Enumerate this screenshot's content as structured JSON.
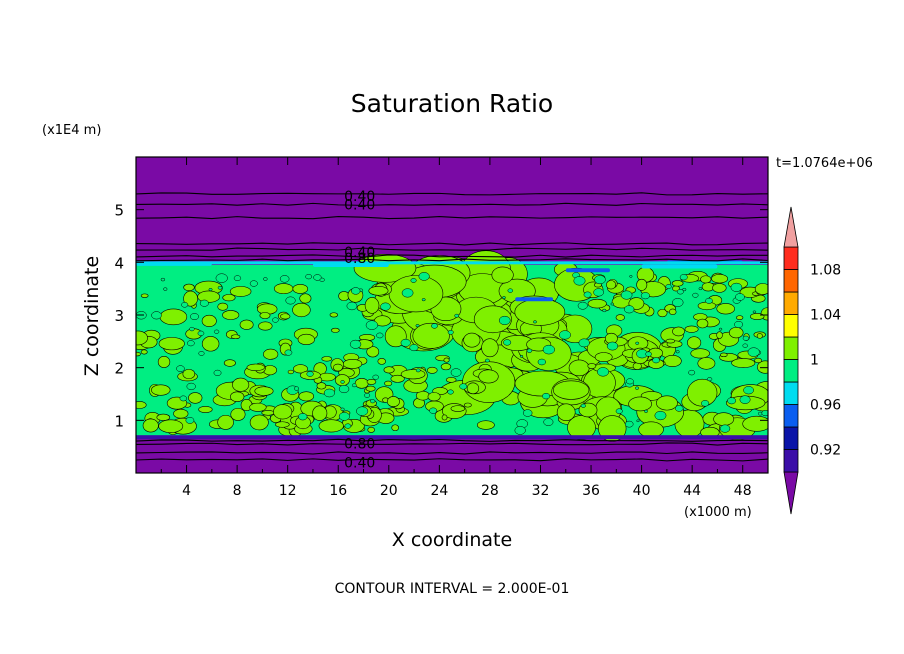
{
  "chart_data": {
    "type": "heatmap",
    "title": "Saturation Ratio",
    "xlabel": "X coordinate",
    "ylabel": "Z coordinate",
    "x_unit": "(x1000 m)",
    "y_unit": "(x1E4 m)",
    "time_label": "t=1.0764e+06",
    "footer": "CONTOUR INTERVAL = 2.000E-01",
    "xlim": [
      0,
      50
    ],
    "ylim": [
      0,
      6
    ],
    "x_ticks": [
      "4",
      "8",
      "12",
      "16",
      "20",
      "24",
      "28",
      "32",
      "36",
      "40",
      "44",
      "48"
    ],
    "y_ticks": [
      "1",
      "2",
      "3",
      "4",
      "5"
    ],
    "colorbar": {
      "colors": [
        "#7a0aa5",
        "#3b0ea8",
        "#0a14a8",
        "#0a5ef0",
        "#00dcf0",
        "#00ee82",
        "#7ff000",
        "#ffff00",
        "#ffaa00",
        "#ff6600",
        "#ff2d1e",
        "#f0a0a0"
      ],
      "bounds": [
        0.9,
        0.92,
        0.94,
        0.96,
        0.98,
        1.0,
        1.02,
        1.04,
        1.06,
        1.08,
        1.1
      ],
      "labels": [
        "0.92",
        "0.96",
        "1",
        "1.04",
        "1.08"
      ]
    },
    "contour_labels": [
      {
        "text": "0.40",
        "x": 17.7,
        "z": 5.26
      },
      {
        "text": "0.40",
        "x": 17.7,
        "z": 5.1
      },
      {
        "text": "0.40",
        "x": 17.7,
        "z": 4.2
      },
      {
        "text": "0.80",
        "x": 17.7,
        "z": 4.08
      },
      {
        "text": "0.80",
        "x": 17.7,
        "z": 0.56
      },
      {
        "text": "0.40",
        "x": 17.7,
        "z": 0.2
      }
    ],
    "moist_layer_z": [
      0.7,
      3.95
    ]
  }
}
